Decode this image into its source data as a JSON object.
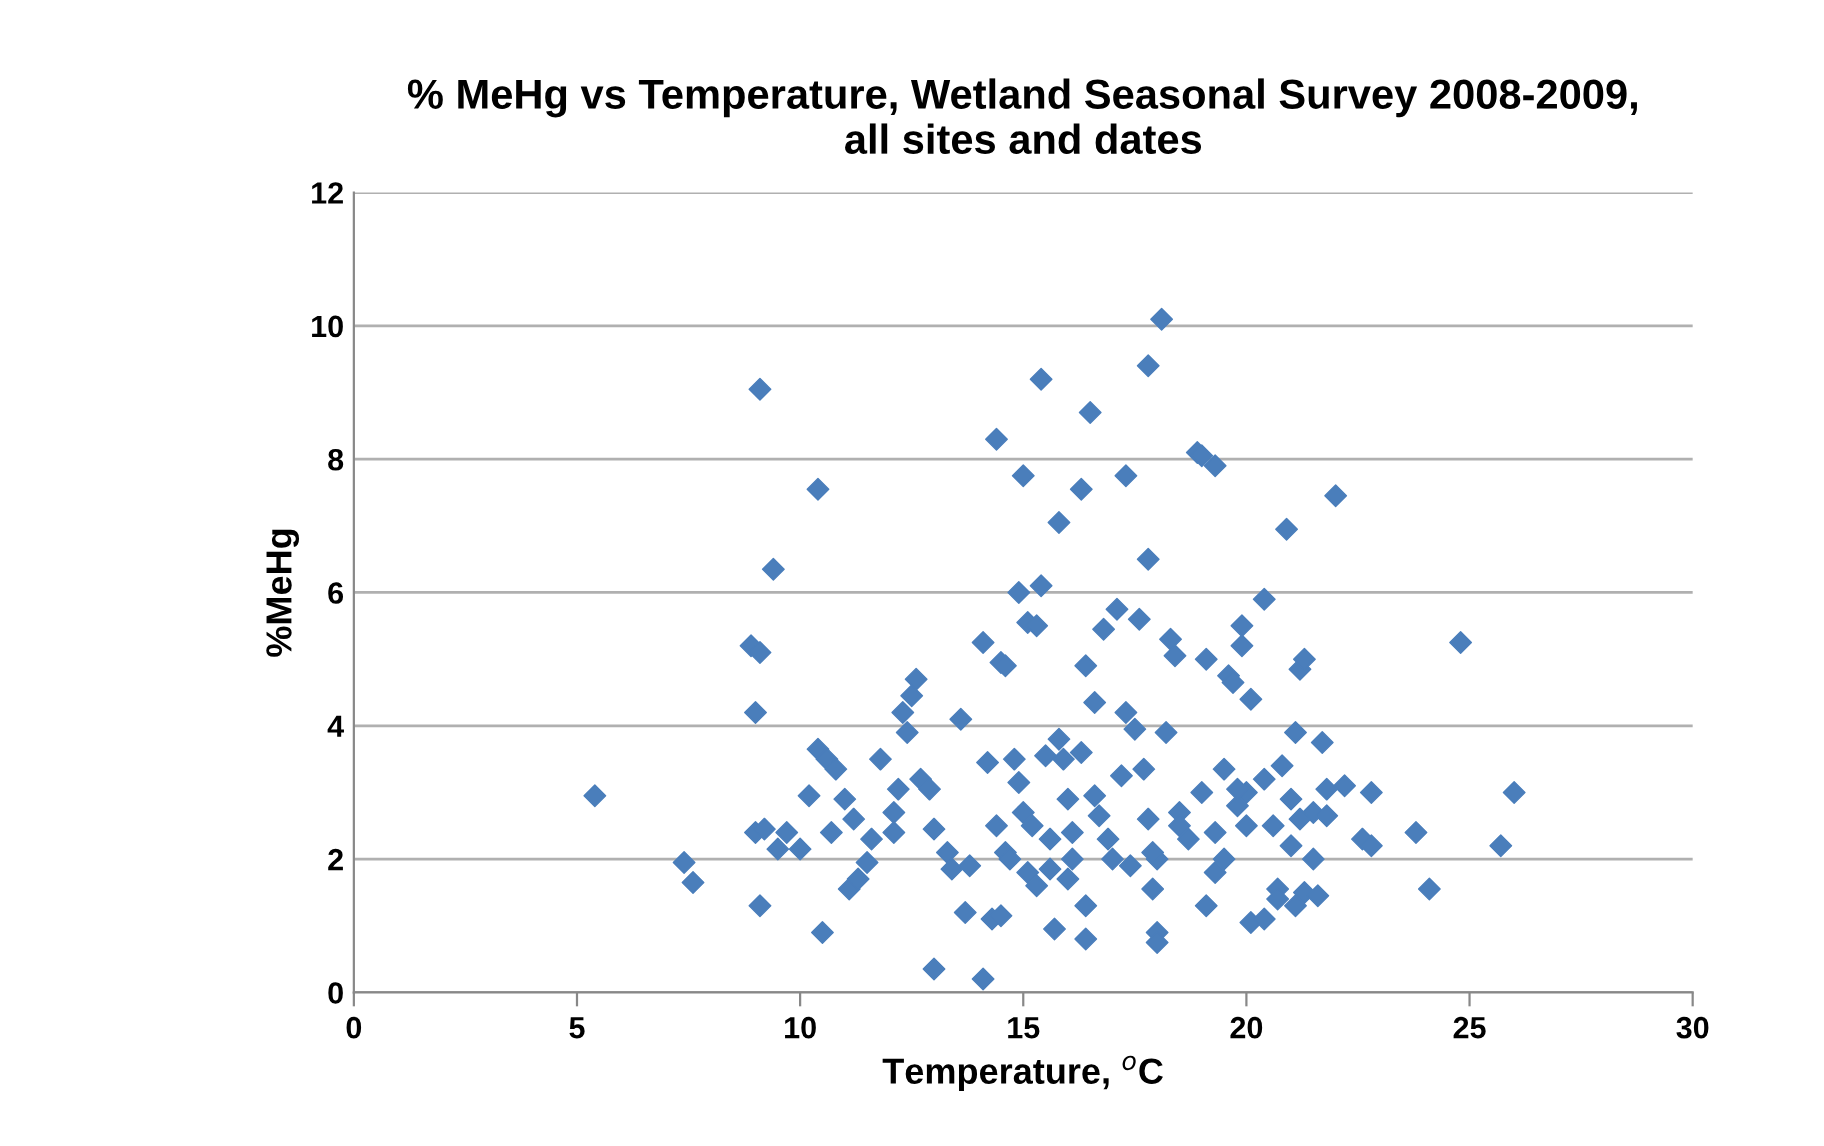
{
  "chart_data": {
    "type": "scatter",
    "title": "% MeHg vs Temperature, Wetland Seasonal Survey 2008-2009,\nall sites and dates",
    "xlabel": "Temperature, $^{o}$C",
    "ylabel": "%MeHg",
    "x": [
      5.4,
      7.4,
      7.6,
      9.1,
      8.9,
      9.1,
      9.4,
      9.0,
      9.0,
      9.2,
      9.1,
      9.5,
      9.7,
      10.0,
      10.4,
      10.4,
      10.6,
      10.8,
      10.5,
      10.2,
      10.7,
      11.0,
      11.1,
      11.3,
      11.2,
      11.6,
      11.8,
      11.5,
      12.1,
      12.2,
      12.3,
      12.5,
      12.6,
      12.4,
      12.7,
      12.9,
      12.1,
      13.0,
      13.0,
      13.3,
      13.4,
      13.6,
      13.7,
      13.8,
      14.1,
      14.2,
      14.3,
      14.5,
      14.1,
      14.4,
      14.5,
      14.6,
      14.4,
      14.6,
      14.8,
      14.7,
      14.9,
      15.0,
      15.1,
      15.3,
      15.4,
      15.4,
      14.9,
      15.0,
      15.2,
      15.1,
      15.3,
      15.5,
      15.6,
      15.7,
      15.8,
      15.9,
      15.8,
      16.0,
      16.1,
      16.1,
      16.3,
      16.3,
      16.4,
      16.5,
      16.6,
      16.4,
      16.4,
      16.6,
      16.7,
      16.9,
      16.8,
      17.1,
      17.2,
      17.3,
      17.3,
      17.5,
      17.6,
      17.7,
      17.8,
      17.8,
      17.8,
      17.9,
      18.0,
      18.0,
      18.1,
      18.3,
      18.0,
      18.2,
      18.4,
      18.5,
      18.9,
      19.0,
      19.3,
      19.1,
      19.0,
      19.3,
      19.1,
      19.3,
      19.5,
      19.6,
      19.7,
      19.9,
      19.9,
      20.1,
      19.8,
      20.0,
      20.1,
      20.4,
      20.4,
      20.4,
      20.7,
      20.6,
      20.9,
      20.8,
      21.0,
      21.1,
      21.3,
      21.1,
      21.2,
      21.3,
      21.5,
      21.6,
      21.5,
      21.7,
      21.8,
      22.0,
      21.8,
      22.2,
      22.6,
      22.8,
      22.8,
      23.8,
      24.1,
      24.8,
      25.7,
      26.0,
      18.7,
      19.5,
      20.0,
      20.7,
      21.0,
      17.0,
      16.0,
      17.4,
      18.5,
      19.8,
      21.2,
      15.6,
      17.9
    ],
    "values": [
      2.95,
      1.95,
      1.65,
      9.05,
      5.2,
      5.1,
      6.35,
      4.2,
      2.4,
      2.45,
      1.3,
      2.15,
      2.4,
      2.15,
      7.55,
      3.65,
      3.5,
      3.35,
      0.9,
      2.95,
      2.4,
      2.9,
      1.55,
      1.7,
      2.6,
      2.3,
      3.5,
      1.95,
      2.7,
      3.05,
      4.2,
      4.45,
      4.7,
      3.9,
      3.2,
      3.05,
      2.4,
      2.45,
      0.35,
      2.1,
      1.85,
      4.1,
      1.2,
      1.9,
      5.25,
      3.45,
      1.1,
      1.15,
      0.2,
      8.3,
      4.95,
      4.9,
      2.5,
      2.1,
      3.5,
      2.0,
      6.0,
      7.75,
      5.55,
      5.5,
      6.1,
      9.2,
      3.15,
      2.7,
      2.5,
      1.8,
      1.6,
      3.55,
      1.85,
      0.95,
      3.8,
      3.5,
      7.05,
      2.9,
      2.4,
      2.0,
      3.6,
      7.55,
      4.9,
      8.7,
      4.35,
      1.3,
      0.8,
      2.95,
      2.65,
      2.3,
      5.45,
      5.75,
      3.25,
      7.75,
      4.2,
      3.95,
      5.6,
      3.35,
      9.4,
      6.5,
      2.6,
      1.55,
      0.9,
      0.75,
      10.1,
      5.3,
      2.0,
      3.9,
      5.05,
      2.7,
      8.1,
      8.05,
      7.9,
      5.0,
      3.0,
      2.4,
      1.3,
      1.8,
      3.35,
      4.75,
      4.65,
      5.5,
      5.2,
      4.4,
      2.8,
      2.5,
      1.05,
      1.1,
      5.9,
      3.2,
      1.55,
      2.5,
      6.95,
      3.4,
      2.9,
      1.3,
      1.5,
      3.9,
      4.85,
      5.0,
      2.0,
      1.45,
      2.7,
      3.75,
      2.65,
      7.45,
      3.05,
      3.1,
      2.3,
      3.0,
      2.2,
      2.4,
      1.55,
      5.25,
      2.2,
      3.0,
      2.3,
      2.0,
      3.0,
      1.4,
      2.2,
      2.0,
      1.7,
      1.9,
      2.5,
      3.05,
      2.6,
      2.3,
      2.1
    ],
    "color": "#4a7ebb",
    "marker": "diamond",
    "grid": "y",
    "xlim": [
      0,
      30
    ],
    "xticks": [
      0,
      5,
      10,
      15,
      20,
      25,
      30
    ],
    "ylim": [
      0,
      12
    ],
    "yticks": [
      0,
      2,
      4,
      6,
      8,
      10,
      12
    ]
  }
}
